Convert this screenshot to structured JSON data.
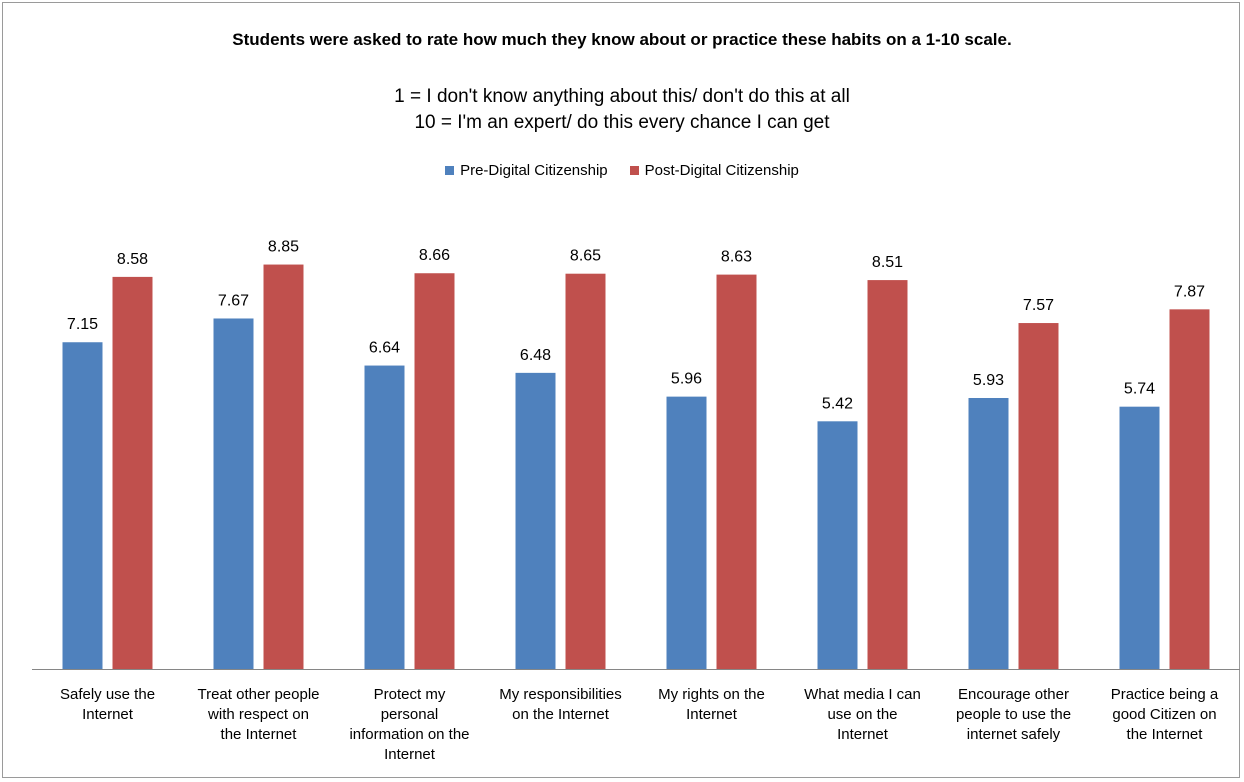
{
  "chart_data": {
    "type": "bar",
    "title": "Students were asked to rate how much they know about or practice these habits on a 1-10 scale.",
    "subtitle_lines": [
      "1 = I don't know anything about this/ don't do this at all",
      "10 = I'm an expert/ do this every chance I can get"
    ],
    "categories": [
      [
        "Safely use the",
        "Internet"
      ],
      [
        "Treat other people",
        "with respect on",
        "the Internet"
      ],
      [
        "Protect my",
        "personal",
        "information on the",
        "Internet"
      ],
      [
        "My responsibilities",
        "on the Internet"
      ],
      [
        "My rights on the",
        "Internet"
      ],
      [
        "What media I can",
        "use on the",
        "Internet"
      ],
      [
        "Encourage other",
        "people to use the",
        "internet safely"
      ],
      [
        "Practice being a",
        "good Citizen on",
        "the Internet"
      ]
    ],
    "series": [
      {
        "name": "Pre-Digital Citizenship",
        "color": "#4f81bd",
        "values": [
          7.15,
          7.67,
          6.64,
          6.48,
          5.96,
          5.42,
          5.93,
          5.74
        ],
        "labels": [
          "7.15",
          "7.67",
          "6.64",
          "6.48",
          "5.96",
          "5.42",
          "5.93",
          "5.74"
        ]
      },
      {
        "name": "Post-Digital Citizenship",
        "color": "#c0504d",
        "values": [
          8.58,
          8.85,
          8.66,
          8.65,
          8.63,
          8.51,
          7.57,
          7.87
        ],
        "labels": [
          "8.58",
          "8.85",
          "8.66",
          "8.65",
          "8.63",
          "8.51",
          "7.57",
          "7.87"
        ]
      }
    ],
    "ylim": [
      0,
      10
    ],
    "grid": false,
    "legend_position": "top-center"
  }
}
